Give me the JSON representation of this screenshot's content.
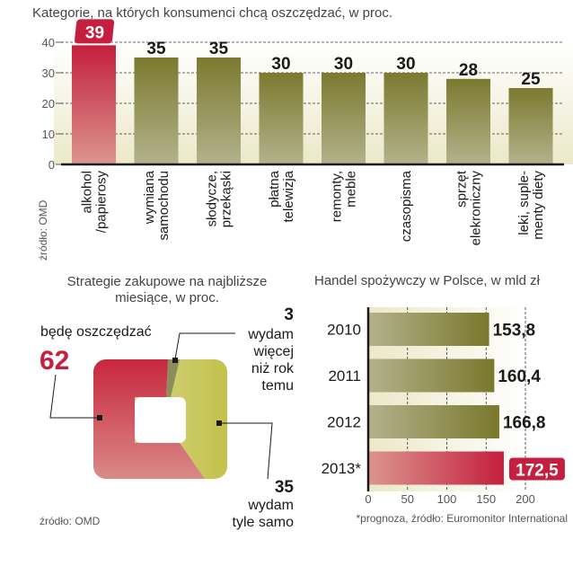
{
  "colors": {
    "highlight": "#c41f3e",
    "bar": "#7b7a2f",
    "bar_light": "#b7b58f",
    "accent_green": "#c2c24a",
    "background": "#f4f1dc"
  },
  "chart_data": [
    {
      "type": "bar",
      "title": "Kategorie, na których konsumenci chcą oszczędzać, w proc.",
      "categories": [
        "alkohol\n/papierosy",
        "wymiana\nsamochodu",
        "słodycze,\nprzekąski",
        "płatna\ntelewizja",
        "remonty,\nmeble",
        "czasopisma",
        "sprzęt\nelekroniczny",
        "leki, suple-\nmenty diety"
      ],
      "values": [
        39,
        35,
        35,
        30,
        30,
        30,
        28,
        25
      ],
      "highlight_index": 0,
      "ylim": [
        0,
        40
      ],
      "yticks": [
        "0",
        "10",
        "20",
        "30",
        "40"
      ],
      "grid": true,
      "source": "źródło: OMD"
    },
    {
      "type": "pie",
      "title_lines": [
        "Strategie zakupowe na najbliższe",
        "miesiące, w proc."
      ],
      "slices": [
        {
          "value": 62,
          "value_label": "62",
          "label_lines": [
            "będę oszczędzać"
          ],
          "color": "#c41f3e"
        },
        {
          "value": 3,
          "value_label": "3",
          "label_lines": [
            "wydam",
            "więcej",
            "niż rok",
            "temu"
          ],
          "color": "#8d8c5a"
        },
        {
          "value": 35,
          "value_label": "35",
          "label_lines": [
            "wydam",
            "tyle samo"
          ],
          "color": "#c2c24a"
        }
      ],
      "source": "źródło: OMD"
    },
    {
      "type": "bar",
      "orientation": "horizontal",
      "title": "Handel spożywczy w Polsce, w mld zł",
      "categories": [
        "2010",
        "2011",
        "2012",
        "2013*"
      ],
      "values": [
        153.8,
        160.4,
        166.8,
        172.5
      ],
      "value_labels": [
        "153,8",
        "160,4",
        "166,8",
        "172,5"
      ],
      "highlight_index": 3,
      "xlim": [
        0,
        200
      ],
      "xticks": [
        "0",
        "50",
        "100",
        "150",
        "200"
      ],
      "grid": true,
      "footnote": "*prognoza, źródło: Euromonitor International"
    }
  ]
}
